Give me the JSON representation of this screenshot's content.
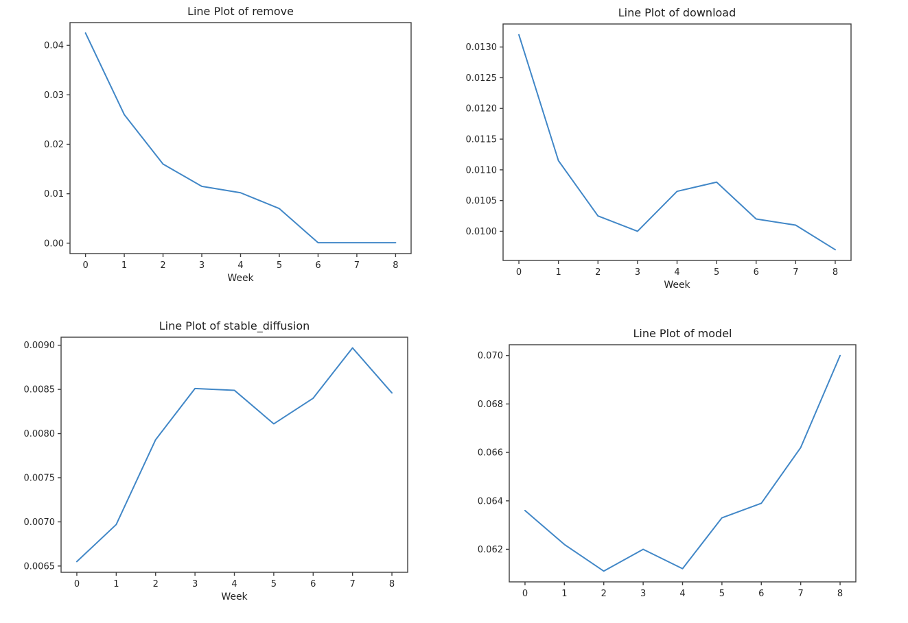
{
  "figure": {
    "background": "#ffffff",
    "line_color": "#4187c7",
    "spine_color": "#3f3f3f",
    "tick_text_color": "#262626"
  },
  "chart_data": [
    {
      "type": "line",
      "title": "Line Plot of remove",
      "xlabel": "Week",
      "x": [
        0,
        1,
        2,
        3,
        4,
        5,
        6,
        7,
        8
      ],
      "values": [
        0.0425,
        0.026,
        0.016,
        0.0115,
        0.0102,
        0.007,
        0.0001,
        0.0001,
        0.0001
      ],
      "xtick_labels": [
        "0",
        "1",
        "2",
        "3",
        "4",
        "5",
        "6",
        "7",
        "8"
      ],
      "yticks": [
        0.0,
        0.01,
        0.02,
        0.03,
        0.04
      ],
      "ytick_labels": [
        "0.00",
        "0.01",
        "0.02",
        "0.03",
        "0.04"
      ],
      "xlim": [
        -0.4,
        8.4
      ],
      "ylim": [
        -0.0021,
        0.0446
      ],
      "grid": false,
      "legend": "none"
    },
    {
      "type": "line",
      "title": "Line Plot of download",
      "xlabel": "Week",
      "x": [
        0,
        1,
        2,
        3,
        4,
        5,
        6,
        7,
        8
      ],
      "values": [
        0.0132,
        0.01115,
        0.01025,
        0.01,
        0.01065,
        0.0108,
        0.0102,
        0.0101,
        0.0097
      ],
      "xtick_labels": [
        "0",
        "1",
        "2",
        "3",
        "4",
        "5",
        "6",
        "7",
        "8"
      ],
      "yticks": [
        0.01,
        0.0105,
        0.011,
        0.0115,
        0.012,
        0.0125,
        0.013
      ],
      "ytick_labels": [
        "0.0100",
        "0.0105",
        "0.0110",
        "0.0115",
        "0.0120",
        "0.0125",
        "0.0130"
      ],
      "xlim": [
        -0.4,
        8.4
      ],
      "ylim": [
        0.009525,
        0.013375
      ],
      "grid": false,
      "legend": "none"
    },
    {
      "type": "line",
      "title": "Line Plot of stable_diffusion",
      "xlabel": "Week",
      "x": [
        0,
        1,
        2,
        3,
        4,
        5,
        6,
        7,
        8
      ],
      "values": [
        0.00655,
        0.00697,
        0.00793,
        0.00851,
        0.00849,
        0.00811,
        0.0084,
        0.00897,
        0.00846
      ],
      "xtick_labels": [
        "0",
        "1",
        "2",
        "3",
        "4",
        "5",
        "6",
        "7",
        "8"
      ],
      "yticks": [
        0.0065,
        0.007,
        0.0075,
        0.008,
        0.0085,
        0.009
      ],
      "ytick_labels": [
        "0.0065",
        "0.0070",
        "0.0075",
        "0.0080",
        "0.0085",
        "0.0090"
      ],
      "xlim": [
        -0.4,
        8.4
      ],
      "ylim": [
        0.006429,
        0.009091
      ],
      "grid": false,
      "legend": "none"
    },
    {
      "type": "line",
      "title": "Line Plot of model",
      "xlabel": "",
      "x": [
        0,
        1,
        2,
        3,
        4,
        5,
        6,
        7,
        8
      ],
      "values": [
        0.0636,
        0.0622,
        0.0611,
        0.062,
        0.0612,
        0.0633,
        0.0639,
        0.0662,
        0.07
      ],
      "xtick_labels": [
        "0",
        "1",
        "2",
        "3",
        "4",
        "5",
        "6",
        "7",
        "8"
      ],
      "yticks": [
        0.062,
        0.064,
        0.066,
        0.068,
        0.07
      ],
      "ytick_labels": [
        "0.062",
        "0.064",
        "0.066",
        "0.068",
        "0.070"
      ],
      "xlim": [
        -0.4,
        8.4
      ],
      "ylim": [
        0.060655,
        0.070445
      ],
      "grid": false,
      "legend": "none"
    }
  ]
}
